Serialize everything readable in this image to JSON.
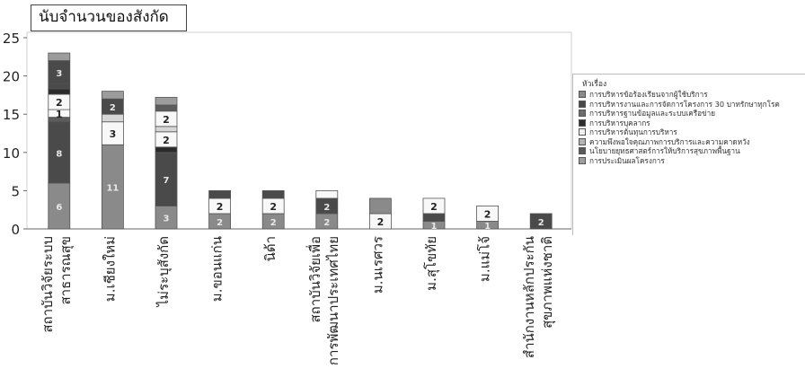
{
  "title": "นับจำนวนของสังกัด",
  "colors": {
    "bar": "#8a8a8a",
    "bar_top": "#9c9c9c",
    "dark": "#4a4a4a",
    "white": "#f8f8f8",
    "stroke": "#555555",
    "text": "#222222",
    "grid": "#c8c8c8"
  },
  "legend": {
    "title": "หัวเรื่อง",
    "items": [
      {
        "label": "การบริหารข้อร้องเรียนจากผู้ใช้บริการ",
        "color": "#8a8a8a"
      },
      {
        "label": "การบริหารงานและการจัดการโครงการ 30 บาทรักษาทุกโรค",
        "color": "#4a4a4a"
      },
      {
        "label": "การบริหารฐานข้อมูลและระบบเครือข่าย",
        "color": "#6e6e6e"
      },
      {
        "label": "การบริหารบุคลากร",
        "color": "#2e2e2e"
      },
      {
        "label": "การบริหารต้นทุนการบริหาร",
        "color": "#f0f0f0"
      },
      {
        "label": "ความพึงพอใจคุณภาพการบริการและความคาดหวัง",
        "color": "#b4b4b4"
      },
      {
        "label": "นโยบายยุทธศาสตร์การให้บริการสุขภาพพื้นฐาน",
        "color": "#5a5a5a"
      },
      {
        "label": "การประเมินผลโครงการ",
        "color": "#9e9e9e"
      }
    ]
  },
  "chart_data": {
    "type": "bar",
    "stacked": true,
    "title": "นับจำนวนของสังกัด",
    "ylim": [
      0,
      25
    ],
    "yticks": [
      0,
      5,
      10,
      15,
      20,
      25
    ],
    "grid": false,
    "legend_position": "right",
    "categories": [
      [
        "สถาบันวิจัยระบบ",
        "สาธารณสุข"
      ],
      [
        "ม.เชียงใหม่"
      ],
      [
        "ไม่ระบุสังกัด"
      ],
      [
        "ม.ขอนแก่น"
      ],
      [
        "นิด้า"
      ],
      [
        "สถาบันวิจัยเพื่อ",
        "การพัฒนาประเทศไทย"
      ],
      [
        "ม.นเรศวร"
      ],
      [
        "ม.สุโขทัย"
      ],
      [
        "ม.แม่โจ้"
      ],
      [
        "สำนักงานหลักประกัน",
        "สุขภาพแห่งชาติ"
      ]
    ],
    "bars": [
      [
        {
          "value": 6,
          "shade": "bar",
          "label": "6"
        },
        {
          "value": 8,
          "shade": "dark",
          "label": "8"
        },
        {
          "value": 0.6,
          "shade": "dark2",
          "label": ""
        },
        {
          "value": 1,
          "shade": "white",
          "label": "1"
        },
        {
          "value": 2,
          "shade": "white",
          "label": "2"
        },
        {
          "value": 0.7,
          "shade": "black",
          "label": ""
        },
        {
          "value": 0.7,
          "shade": "dark",
          "label": ""
        },
        {
          "value": 3,
          "shade": "dark",
          "label": "3"
        },
        {
          "value": 1,
          "shade": "bar_top",
          "label": ""
        }
      ],
      [
        {
          "value": 11,
          "shade": "bar",
          "label": "11"
        },
        {
          "value": 3,
          "shade": "white",
          "label": "3"
        },
        {
          "value": 1,
          "shade": "light",
          "label": ""
        },
        {
          "value": 2,
          "shade": "dark",
          "label": "2"
        },
        {
          "value": 1,
          "shade": "bar_top",
          "label": ""
        }
      ],
      [
        {
          "value": 3,
          "shade": "bar",
          "label": "3"
        },
        {
          "value": 7,
          "shade": "dark",
          "label": "7"
        },
        {
          "value": 0.7,
          "shade": "black",
          "label": ""
        },
        {
          "value": 2,
          "shade": "white",
          "label": "2"
        },
        {
          "value": 0.7,
          "shade": "light",
          "label": ""
        },
        {
          "value": 2,
          "shade": "white",
          "label": "2"
        },
        {
          "value": 0.8,
          "shade": "dark2",
          "label": ""
        },
        {
          "value": 1,
          "shade": "bar_top",
          "label": ""
        }
      ],
      [
        {
          "value": 2,
          "shade": "bar",
          "label": "2"
        },
        {
          "value": 2,
          "shade": "white",
          "label": "2"
        },
        {
          "value": 1,
          "shade": "dark",
          "label": ""
        }
      ],
      [
        {
          "value": 2,
          "shade": "bar",
          "label": "2"
        },
        {
          "value": 2,
          "shade": "white",
          "label": "2"
        },
        {
          "value": 1,
          "shade": "dark",
          "label": ""
        }
      ],
      [
        {
          "value": 2,
          "shade": "bar",
          "label": "2"
        },
        {
          "value": 2,
          "shade": "dark",
          "label": "2"
        },
        {
          "value": 1,
          "shade": "white",
          "label": ""
        }
      ],
      [
        {
          "value": 2,
          "shade": "white",
          "label": "2"
        },
        {
          "value": 2,
          "shade": "bar",
          "label": ""
        }
      ],
      [
        {
          "value": 1,
          "shade": "bar",
          "label": "1"
        },
        {
          "value": 1,
          "shade": "dark",
          "label": ""
        },
        {
          "value": 2,
          "shade": "white",
          "label": "2"
        }
      ],
      [
        {
          "value": 1,
          "shade": "bar",
          "label": "1"
        },
        {
          "value": 2,
          "shade": "white",
          "label": "2"
        }
      ],
      [
        {
          "value": 2,
          "shade": "dark",
          "label": "2"
        }
      ]
    ]
  }
}
